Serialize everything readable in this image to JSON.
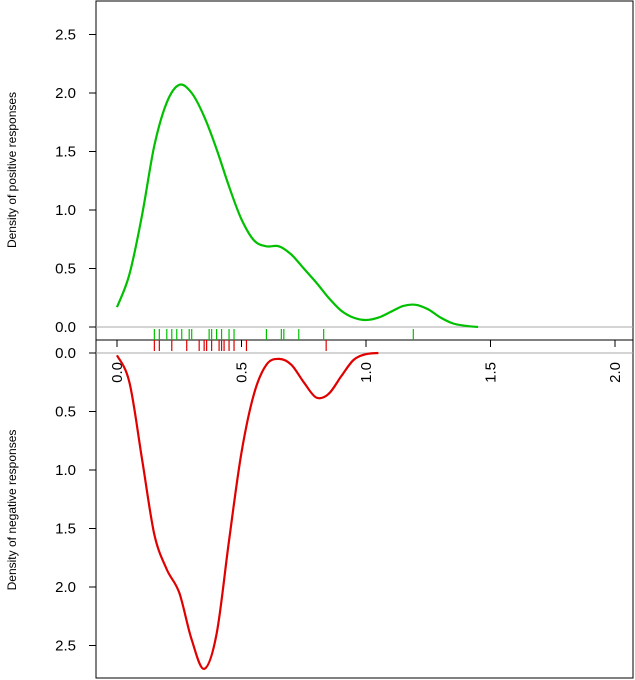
{
  "chart_data": {
    "type": "line",
    "x_axis": {
      "range": [
        -0.09,
        2.06
      ],
      "ticks": [
        0.0,
        0.5,
        1.0,
        1.5,
        2.0
      ],
      "tick_labels": [
        "0.0",
        "0.5",
        "1.0",
        "1.5",
        "2.0"
      ]
    },
    "positive_panel": {
      "ylabel": "Density of positive responses",
      "y_range": [
        0,
        2.8
      ],
      "y_ticks": [
        0.0,
        0.5,
        1.0,
        1.5,
        2.0,
        2.5
      ],
      "y_tick_labels": [
        "0.0",
        "0.5",
        "1.0",
        "1.5",
        "2.0",
        "2.5"
      ],
      "color": "#00c000",
      "density": {
        "x": [
          0.0,
          0.05,
          0.1,
          0.15,
          0.2,
          0.25,
          0.3,
          0.35,
          0.4,
          0.45,
          0.5,
          0.55,
          0.6,
          0.65,
          0.7,
          0.75,
          0.8,
          0.85,
          0.9,
          0.95,
          1.0,
          1.05,
          1.1,
          1.15,
          1.2,
          1.25,
          1.3,
          1.35,
          1.4,
          1.45
        ],
        "y": [
          0.17,
          0.45,
          0.95,
          1.55,
          1.92,
          2.07,
          2.0,
          1.8,
          1.52,
          1.2,
          0.92,
          0.74,
          0.69,
          0.69,
          0.62,
          0.5,
          0.38,
          0.25,
          0.14,
          0.08,
          0.06,
          0.08,
          0.13,
          0.18,
          0.19,
          0.15,
          0.08,
          0.03,
          0.01,
          0.0
        ]
      },
      "rug": [
        0.15,
        0.17,
        0.2,
        0.22,
        0.24,
        0.26,
        0.29,
        0.3,
        0.37,
        0.38,
        0.4,
        0.42,
        0.45,
        0.47,
        0.6,
        0.66,
        0.67,
        0.73,
        0.83,
        1.19
      ]
    },
    "negative_panel": {
      "ylabel": "Density of negative responses",
      "y_range": [
        0,
        2.8
      ],
      "y_ticks": [
        0.0,
        0.5,
        1.0,
        1.5,
        2.0,
        2.5
      ],
      "y_tick_labels": [
        "0.0",
        "0.5",
        "1.0",
        "1.5",
        "2.0",
        "2.5"
      ],
      "color": "#e00000",
      "inverted": true,
      "density": {
        "x": [
          0.0,
          0.05,
          0.1,
          0.15,
          0.2,
          0.25,
          0.3,
          0.35,
          0.4,
          0.45,
          0.5,
          0.55,
          0.6,
          0.65,
          0.7,
          0.75,
          0.8,
          0.85,
          0.9,
          0.95,
          1.0,
          1.05
        ],
        "y": [
          0.02,
          0.25,
          0.9,
          1.55,
          1.85,
          2.05,
          2.45,
          2.7,
          2.4,
          1.6,
          0.85,
          0.35,
          0.1,
          0.05,
          0.1,
          0.25,
          0.38,
          0.35,
          0.2,
          0.06,
          0.01,
          0.0
        ]
      },
      "rug": [
        0.15,
        0.17,
        0.22,
        0.28,
        0.33,
        0.35,
        0.36,
        0.38,
        0.41,
        0.42,
        0.43,
        0.45,
        0.47,
        0.52,
        0.84
      ]
    }
  }
}
